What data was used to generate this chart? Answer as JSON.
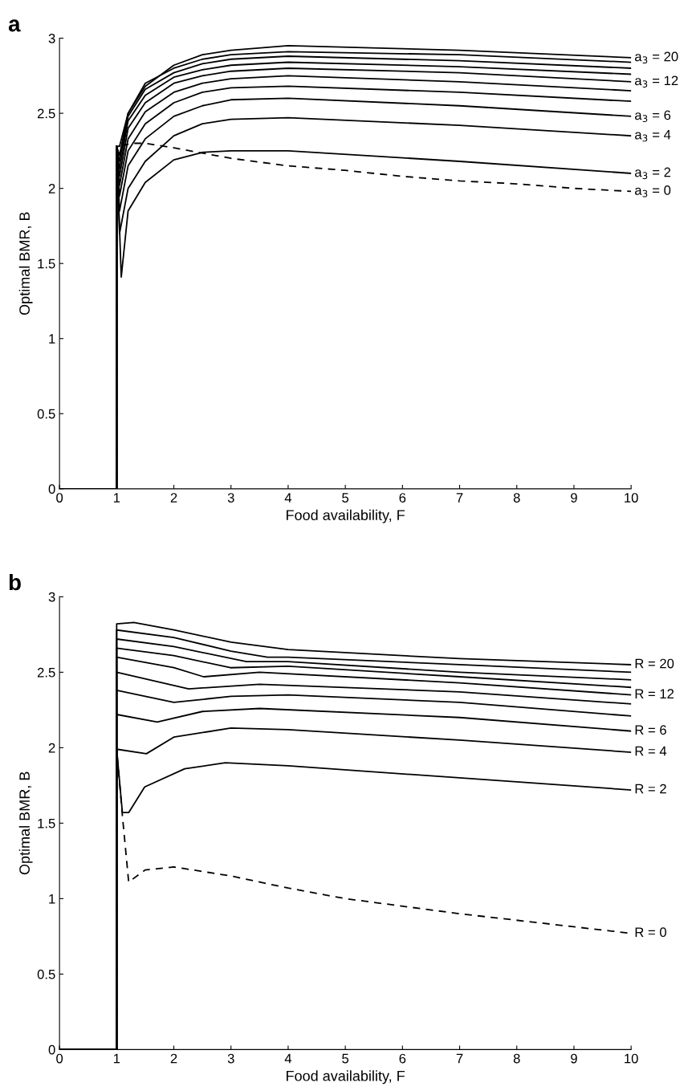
{
  "chart_data": [
    {
      "type": "line",
      "title": "a",
      "xlabel": "Food availability, F",
      "ylabel": "Optimal BMR, B",
      "xlim": [
        0,
        10
      ],
      "ylim": [
        0,
        3
      ],
      "xticks": [
        0,
        1,
        2,
        3,
        4,
        5,
        6,
        7,
        8,
        9,
        10
      ],
      "yticks": [
        0,
        0.5,
        1,
        1.5,
        2,
        2.5,
        3
      ],
      "grid": false,
      "legend": false,
      "series": [
        {
          "name": "a$_{3}$ = 0",
          "color": "#000000",
          "line_style": "dashed",
          "x": [
            0,
            1,
            1,
            1.3,
            1.5,
            2,
            3,
            4,
            5,
            6,
            7,
            8,
            9,
            10
          ],
          "values": [
            0,
            0,
            2.28,
            2.3,
            2.3,
            2.27,
            2.2,
            2.15,
            2.12,
            2.08,
            2.05,
            2.03,
            2.0,
            1.98
          ]
        },
        {
          "name": "a$_{3}$ = 2",
          "color": "#000000",
          "x": [
            0,
            1,
            1,
            1.08,
            1.2,
            1.5,
            2,
            2.5,
            3,
            4,
            7,
            10
          ],
          "values": [
            0,
            0,
            2.28,
            1.41,
            1.85,
            2.04,
            2.19,
            2.24,
            2.25,
            2.25,
            2.18,
            2.1
          ]
        },
        {
          "name": "a$_{3}$ = 4",
          "color": "#000000",
          "x": [
            0,
            1,
            1,
            1.05,
            1.2,
            1.5,
            2,
            2.5,
            3,
            4,
            7,
            10
          ],
          "values": [
            0,
            0,
            2.28,
            1.7,
            2.0,
            2.18,
            2.35,
            2.43,
            2.46,
            2.47,
            2.42,
            2.35
          ]
        },
        {
          "name": "a$_{3}$ = 6",
          "color": "#000000",
          "x": [
            0,
            1,
            1,
            1.05,
            1.2,
            1.5,
            2,
            2.5,
            3,
            4,
            7,
            10
          ],
          "values": [
            0,
            0,
            2.28,
            1.85,
            2.15,
            2.33,
            2.48,
            2.55,
            2.59,
            2.6,
            2.55,
            2.48
          ]
        },
        {
          "color": "#000000",
          "x": [
            0,
            1,
            1,
            1.05,
            1.2,
            1.5,
            2,
            2.5,
            3,
            4,
            7,
            10
          ],
          "values": [
            0,
            0,
            2.28,
            1.95,
            2.25,
            2.43,
            2.57,
            2.64,
            2.67,
            2.68,
            2.64,
            2.58
          ]
        },
        {
          "color": "#000000",
          "x": [
            0,
            1,
            1,
            1.05,
            1.2,
            1.5,
            2,
            2.5,
            3,
            4,
            7,
            10
          ],
          "values": [
            0,
            0,
            2.28,
            2.02,
            2.33,
            2.51,
            2.64,
            2.7,
            2.73,
            2.75,
            2.71,
            2.65
          ]
        },
        {
          "name": "a$_{3}$ = 12",
          "color": "#000000",
          "x": [
            0,
            1,
            1,
            1.05,
            1.2,
            1.5,
            2,
            2.5,
            3,
            4,
            7,
            10
          ],
          "values": [
            0,
            0,
            2.28,
            2.08,
            2.4,
            2.57,
            2.7,
            2.75,
            2.78,
            2.8,
            2.77,
            2.71
          ]
        },
        {
          "color": "#000000",
          "x": [
            0,
            1,
            1,
            1.05,
            1.2,
            1.5,
            2,
            2.5,
            3,
            4,
            7,
            10
          ],
          "values": [
            0,
            0,
            2.28,
            2.13,
            2.45,
            2.62,
            2.74,
            2.79,
            2.82,
            2.84,
            2.81,
            2.76
          ]
        },
        {
          "color": "#000000",
          "x": [
            0,
            1,
            1,
            1.05,
            1.2,
            1.5,
            2,
            2.5,
            3,
            4,
            7,
            10
          ],
          "values": [
            0,
            0,
            2.28,
            2.18,
            2.48,
            2.66,
            2.77,
            2.83,
            2.86,
            2.88,
            2.85,
            2.8
          ]
        },
        {
          "color": "#000000",
          "x": [
            0,
            1,
            1,
            1.05,
            1.2,
            1.5,
            2,
            2.5,
            3,
            4,
            7,
            10
          ],
          "values": [
            0,
            0,
            2.28,
            2.22,
            2.5,
            2.7,
            2.8,
            2.86,
            2.89,
            2.91,
            2.89,
            2.84
          ]
        },
        {
          "name": "a$_{3}$ = 20",
          "color": "#000000",
          "x": [
            0,
            1,
            1,
            1.05,
            1.2,
            1.5,
            2,
            2.5,
            3,
            4,
            7,
            10
          ],
          "values": [
            0,
            0,
            2.28,
            2.28,
            2.5,
            2.68,
            2.82,
            2.89,
            2.92,
            2.95,
            2.92,
            2.87
          ]
        }
      ]
    },
    {
      "type": "line",
      "title": "b",
      "xlabel": "Food availability, F",
      "ylabel": "Optimal BMR, B",
      "xlim": [
        0,
        10
      ],
      "ylim": [
        0,
        3
      ],
      "xticks": [
        0,
        1,
        2,
        3,
        4,
        5,
        6,
        7,
        8,
        9,
        10
      ],
      "yticks": [
        0,
        0.5,
        1,
        1.5,
        2,
        2.5,
        3
      ],
      "grid": false,
      "legend": false,
      "series": [
        {
          "name": "R = 0",
          "color": "#000000",
          "line_style": "dashed",
          "x": [
            0,
            1,
            1,
            1.1,
            1.21,
            1.5,
            2,
            3,
            4,
            5,
            7,
            10
          ],
          "values": [
            0,
            0,
            1.99,
            1.55,
            1.11,
            1.19,
            1.21,
            1.15,
            1.07,
            1.0,
            0.9,
            0.77
          ]
        },
        {
          "name": "R = 2",
          "color": "#000000",
          "x": [
            0,
            1,
            1,
            1.1,
            1.21,
            1.49,
            2.19,
            2.9,
            4,
            7,
            10
          ],
          "values": [
            0,
            0,
            1.99,
            1.57,
            1.57,
            1.74,
            1.86,
            1.9,
            1.88,
            1.8,
            1.72
          ]
        },
        {
          "name": "R = 4",
          "color": "#000000",
          "x": [
            0,
            1,
            1,
            1.52,
            2,
            3,
            4,
            7,
            10
          ],
          "values": [
            0,
            0,
            1.99,
            1.96,
            2.07,
            2.13,
            2.12,
            2.05,
            1.97
          ]
        },
        {
          "name": "R = 6",
          "color": "#000000",
          "x": [
            0,
            1,
            1,
            1.71,
            2.5,
            3.5,
            7,
            10
          ],
          "values": [
            0,
            0,
            2.22,
            2.17,
            2.24,
            2.26,
            2.2,
            2.11
          ]
        },
        {
          "color": "#000000",
          "x": [
            0,
            1,
            1,
            2,
            3,
            4,
            7,
            10
          ],
          "values": [
            0,
            0,
            2.38,
            2.3,
            2.34,
            2.35,
            2.3,
            2.21
          ]
        },
        {
          "color": "#000000",
          "x": [
            0,
            1,
            1,
            2.26,
            3.5,
            7,
            10
          ],
          "values": [
            0,
            0,
            2.5,
            2.39,
            2.42,
            2.37,
            2.29
          ]
        },
        {
          "name": "R = 12",
          "color": "#000000",
          "x": [
            0,
            1,
            1,
            2,
            2.52,
            3.5,
            7,
            10
          ],
          "values": [
            0,
            0,
            2.6,
            2.53,
            2.47,
            2.5,
            2.43,
            2.35
          ]
        },
        {
          "color": "#000000",
          "x": [
            0,
            1,
            1,
            2,
            2.99,
            4,
            7,
            10
          ],
          "values": [
            0,
            0,
            2.66,
            2.61,
            2.53,
            2.54,
            2.47,
            2.4
          ]
        },
        {
          "color": "#000000",
          "x": [
            0,
            1,
            1,
            2,
            3.27,
            4,
            7,
            10
          ],
          "values": [
            0,
            0,
            2.72,
            2.67,
            2.57,
            2.57,
            2.5,
            2.45
          ]
        },
        {
          "color": "#000000",
          "x": [
            0,
            1,
            1,
            2,
            3,
            3.64,
            4,
            7,
            10
          ],
          "values": [
            0,
            0,
            2.78,
            2.73,
            2.64,
            2.6,
            2.6,
            2.55,
            2.5
          ]
        },
        {
          "name": "R = 20",
          "color": "#000000",
          "x": [
            0,
            1,
            1,
            1.3,
            2,
            3,
            4,
            7,
            10
          ],
          "values": [
            0,
            0,
            2.82,
            2.83,
            2.78,
            2.7,
            2.65,
            2.59,
            2.55
          ]
        }
      ]
    }
  ]
}
